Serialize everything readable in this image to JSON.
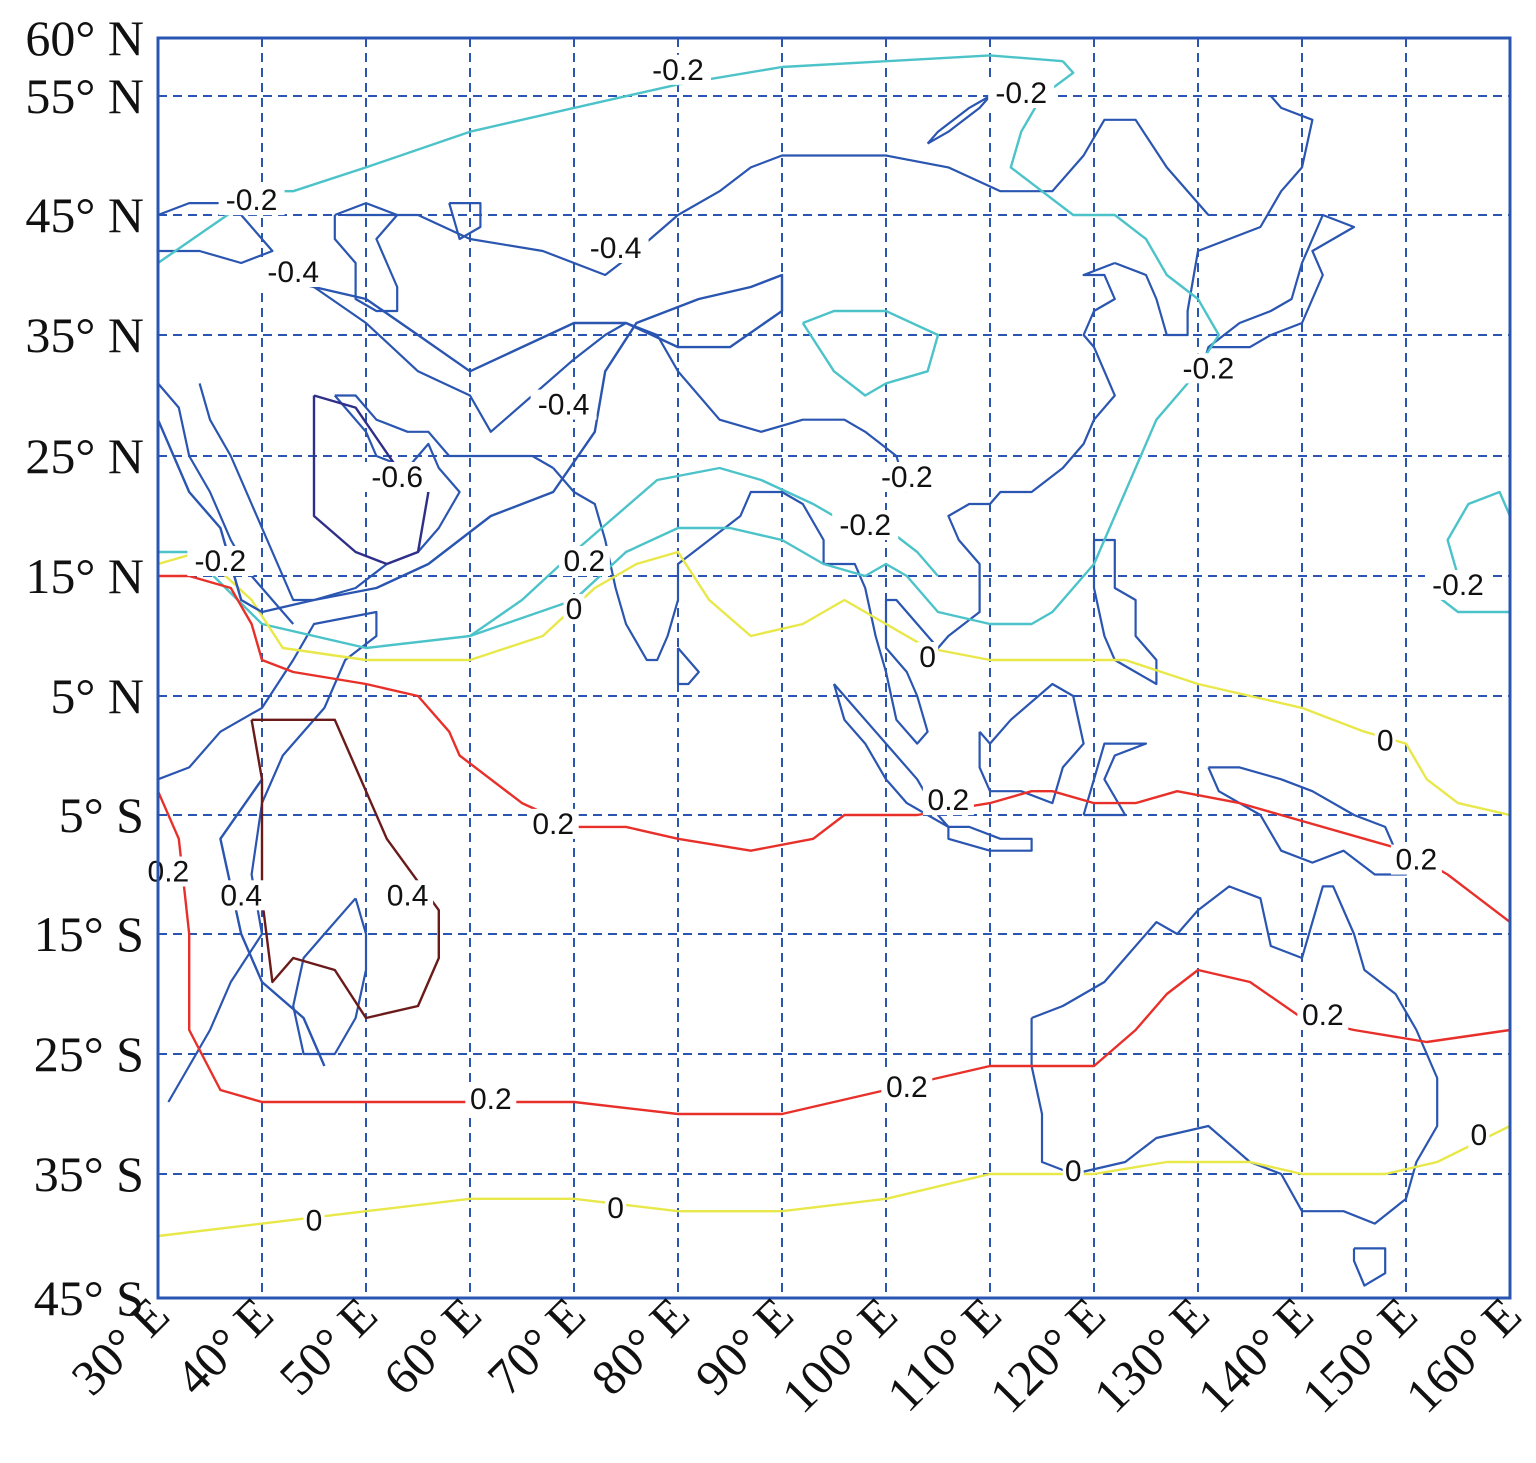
{
  "figure": {
    "lat_labels": [
      "60° N",
      "55° N",
      "45° N",
      "35° N",
      "25° N",
      "15° N",
      "5° N",
      "5° S",
      "15° S",
      "25° S",
      "35° S",
      "45° S"
    ],
    "lon_labels": [
      "30° E",
      "40° E",
      "50° E",
      "60° E",
      "70° E",
      "80° E",
      "90° E",
      "100° E",
      "110° E",
      "120° E",
      "130° E",
      "140° E",
      "150° E",
      "160° E"
    ],
    "colors": {
      "frame": "#2a55b0",
      "grid": "#2a55b0",
      "coastline": "#2a55b0",
      "contour_-0.6": "#2f2f8a",
      "contour_-0.4": "#2a55b0",
      "contour_-0.2": "#4cc3c9",
      "contour_0": "#e8e84a",
      "contour_0.2": "#e8302a",
      "contour_0.4": "#6b1a1a"
    }
  },
  "chart_data": {
    "type": "contour_map",
    "xlabel": "",
    "ylabel": "",
    "xlim": [
      30,
      160
    ],
    "ylim": [
      -45,
      60
    ],
    "x_ticks": [
      30,
      40,
      50,
      60,
      70,
      80,
      90,
      100,
      110,
      120,
      130,
      140,
      150,
      160
    ],
    "y_ticks": [
      60,
      55,
      45,
      35,
      25,
      15,
      5,
      -5,
      -15,
      -25,
      -35,
      -45
    ],
    "grid": true,
    "grid_style": "dashed",
    "contour_levels": [
      -0.6,
      -0.4,
      -0.2,
      0,
      0.2,
      0.4
    ],
    "contours": [
      {
        "level": -0.2,
        "color": "#4cc3c9",
        "points": [
          [
            30,
            17
          ],
          [
            33,
            17
          ],
          [
            40,
            11
          ],
          [
            50,
            9
          ],
          [
            60,
            10
          ],
          [
            70,
            13
          ],
          [
            75,
            17
          ],
          [
            80,
            19
          ],
          [
            85,
            19
          ],
          [
            90,
            18
          ],
          [
            94,
            16
          ],
          [
            98,
            15
          ],
          [
            100,
            16
          ],
          [
            102,
            15
          ],
          [
            105,
            12
          ],
          [
            110,
            11
          ],
          [
            114,
            11
          ],
          [
            116,
            12
          ],
          [
            120,
            16
          ],
          [
            123,
            22
          ],
          [
            126,
            28
          ],
          [
            129,
            31
          ],
          [
            132,
            35
          ],
          [
            130,
            38
          ],
          [
            127,
            40
          ],
          [
            125,
            43
          ],
          [
            122,
            45
          ],
          [
            118,
            45
          ],
          [
            115,
            47
          ],
          [
            112,
            49
          ],
          [
            113,
            52
          ],
          [
            115,
            55
          ],
          [
            118,
            57
          ],
          [
            117,
            58
          ]
        ]
      },
      {
        "level": -0.2,
        "color": "#4cc3c9",
        "points": [
          [
            117,
            58
          ],
          [
            110,
            58.5
          ],
          [
            100,
            58
          ],
          [
            90,
            57.5
          ],
          [
            80,
            56
          ],
          [
            70,
            54
          ],
          [
            60,
            52
          ],
          [
            50,
            49
          ],
          [
            43,
            47
          ],
          [
            40,
            47
          ],
          [
            35,
            44
          ],
          [
            30,
            41
          ]
        ]
      },
      {
        "level": -0.2,
        "color": "#4cc3c9",
        "points": [
          [
            60,
            10
          ],
          [
            65,
            13
          ],
          [
            70,
            17
          ],
          [
            78,
            23
          ],
          [
            84,
            24
          ],
          [
            88,
            23
          ],
          [
            93,
            21
          ],
          [
            97,
            19
          ],
          [
            100,
            19
          ],
          [
            103,
            17
          ],
          [
            105,
            15
          ]
        ]
      },
      {
        "level": -0.2,
        "color": "#4cc3c9",
        "points": [
          [
            92,
            36
          ],
          [
            95,
            37
          ],
          [
            100,
            37
          ],
          [
            105,
            35
          ],
          [
            104,
            32
          ],
          [
            100,
            31
          ],
          [
            98,
            30
          ],
          [
            95,
            32
          ],
          [
            92,
            36
          ]
        ]
      },
      {
        "level": -0.2,
        "color": "#4cc3c9",
        "points": [
          [
            155,
            15
          ],
          [
            154,
            18
          ],
          [
            156,
            21
          ],
          [
            159,
            22
          ],
          [
            160,
            20
          ]
        ]
      },
      {
        "level": -0.2,
        "color": "#4cc3c9",
        "points": [
          [
            155,
            15
          ],
          [
            152,
            14
          ],
          [
            155,
            12
          ],
          [
            160,
            12
          ]
        ]
      },
      {
        "level": 0,
        "color": "#e8e84a",
        "points": [
          [
            30,
            16
          ],
          [
            34,
            17
          ],
          [
            39,
            13
          ],
          [
            42,
            9
          ],
          [
            50,
            8
          ],
          [
            60,
            8
          ],
          [
            67,
            10
          ],
          [
            72,
            14
          ],
          [
            76,
            16
          ],
          [
            80,
            17
          ],
          [
            83,
            13
          ],
          [
            87,
            10
          ],
          [
            92,
            11
          ],
          [
            96,
            13
          ],
          [
            100,
            11
          ],
          [
            104,
            9
          ],
          [
            110,
            8
          ],
          [
            118,
            8
          ],
          [
            123,
            8
          ],
          [
            130,
            6
          ],
          [
            135,
            5
          ],
          [
            140,
            4
          ],
          [
            146,
            2
          ],
          [
            150,
            1
          ],
          [
            152,
            -2
          ],
          [
            155,
            -4
          ],
          [
            160,
            -5
          ]
        ]
      },
      {
        "level": 0,
        "color": "#e8e84a",
        "points": [
          [
            30,
            -40
          ],
          [
            40,
            -39
          ],
          [
            50,
            -38
          ],
          [
            60,
            -37
          ],
          [
            70,
            -37
          ],
          [
            80,
            -38
          ],
          [
            90,
            -38
          ],
          [
            100,
            -37
          ],
          [
            110,
            -35
          ],
          [
            120,
            -35
          ],
          [
            127,
            -34
          ],
          [
            135,
            -34
          ],
          [
            140,
            -35
          ],
          [
            148,
            -35
          ],
          [
            153,
            -34
          ],
          [
            160,
            -31
          ]
        ]
      },
      {
        "level": 0.2,
        "color": "#e8302a",
        "points": [
          [
            30,
            15
          ],
          [
            33,
            15
          ],
          [
            37,
            14
          ],
          [
            39,
            11
          ],
          [
            40,
            8
          ],
          [
            43,
            7
          ],
          [
            50,
            6
          ],
          [
            55,
            5
          ],
          [
            58,
            2
          ],
          [
            59,
            0
          ],
          [
            62,
            -2
          ],
          [
            65,
            -4
          ],
          [
            70,
            -6
          ],
          [
            75,
            -6
          ],
          [
            80,
            -7
          ],
          [
            87,
            -8
          ],
          [
            93,
            -7
          ],
          [
            96,
            -5
          ],
          [
            103,
            -5
          ],
          [
            110,
            -4
          ],
          [
            114,
            -3
          ],
          [
            116,
            -3
          ],
          [
            120,
            -4
          ],
          [
            124,
            -4
          ],
          [
            128,
            -3
          ],
          [
            134,
            -4
          ],
          [
            140,
            -5.5
          ],
          [
            146,
            -7
          ],
          [
            150,
            -8
          ],
          [
            154,
            -10
          ],
          [
            160,
            -14
          ]
        ]
      },
      {
        "level": 0.2,
        "color": "#e8302a",
        "points": [
          [
            30,
            -3
          ],
          [
            32,
            -7
          ],
          [
            33,
            -15
          ],
          [
            33,
            -23
          ],
          [
            36,
            -28
          ],
          [
            40,
            -29
          ],
          [
            50,
            -29
          ],
          [
            60,
            -29
          ],
          [
            70,
            -29
          ],
          [
            80,
            -30
          ],
          [
            90,
            -30
          ],
          [
            100,
            -28
          ],
          [
            110,
            -26
          ],
          [
            120,
            -26
          ],
          [
            124,
            -23
          ],
          [
            127,
            -20
          ],
          [
            130,
            -18
          ],
          [
            135,
            -19
          ],
          [
            140,
            -22
          ],
          [
            145,
            -23
          ],
          [
            152,
            -24
          ],
          [
            160,
            -23
          ]
        ]
      },
      {
        "level": -0.4,
        "color": "#2a55b0",
        "points": [
          [
            30,
            28
          ],
          [
            33,
            22
          ],
          [
            36,
            19
          ],
          [
            38,
            13
          ],
          [
            40,
            12
          ],
          [
            45,
            13
          ],
          [
            51,
            14
          ],
          [
            56,
            16
          ],
          [
            62,
            20
          ],
          [
            68,
            22
          ],
          [
            72,
            27
          ],
          [
            73,
            32
          ],
          [
            76,
            36
          ],
          [
            82,
            38
          ],
          [
            87,
            39
          ],
          [
            90,
            40
          ],
          [
            90,
            37
          ],
          [
            85,
            34
          ],
          [
            80,
            34
          ],
          [
            75,
            36
          ],
          [
            70,
            36
          ],
          [
            65,
            34
          ],
          [
            60,
            32
          ],
          [
            55,
            35
          ],
          [
            50,
            38
          ],
          [
            45,
            39
          ],
          [
            40,
            40
          ]
        ]
      },
      {
        "level": -0.4,
        "color": "#2a55b0",
        "points": [
          [
            40,
            -2
          ],
          [
            36,
            -7
          ],
          [
            38,
            -15
          ],
          [
            40,
            -19
          ],
          [
            44,
            -22
          ],
          [
            46,
            -26
          ]
        ]
      },
      {
        "level": 0.4,
        "color": "#6b1a1a",
        "points": [
          [
            39,
            3
          ],
          [
            47,
            3
          ],
          [
            50,
            -3
          ],
          [
            52,
            -7
          ],
          [
            57,
            -13
          ],
          [
            57,
            -17
          ],
          [
            55,
            -21
          ],
          [
            50,
            -22
          ],
          [
            47,
            -18
          ],
          [
            43,
            -17
          ],
          [
            41,
            -19
          ],
          [
            40,
            -12
          ],
          [
            40,
            -2
          ],
          [
            39,
            3
          ]
        ]
      },
      {
        "level": -0.6,
        "color": "#2f2f8a",
        "points": [
          [
            45,
            30
          ],
          [
            49,
            29
          ],
          [
            53,
            24
          ],
          [
            56,
            22
          ],
          [
            55,
            17
          ],
          [
            52,
            16
          ],
          [
            49,
            17
          ],
          [
            45,
            20
          ],
          [
            45,
            25
          ],
          [
            45,
            30
          ]
        ]
      }
    ],
    "contour_labels": [
      {
        "text": "-0.2",
        "lon": 80,
        "lat": 57
      },
      {
        "text": "-0.2",
        "lon": 113,
        "lat": 55
      },
      {
        "text": "-0.2",
        "lon": 39,
        "lat": 46
      },
      {
        "text": "-0.4",
        "lon": 43,
        "lat": 40
      },
      {
        "text": "-0.4",
        "lon": 74,
        "lat": 42
      },
      {
        "text": "-0.4",
        "lon": 69,
        "lat": 29
      },
      {
        "text": "-0.6",
        "lon": 53,
        "lat": 23
      },
      {
        "text": "-0.2",
        "lon": 102,
        "lat": 23
      },
      {
        "text": "-0.2",
        "lon": 98,
        "lat": 19
      },
      {
        "text": "-0.2",
        "lon": 131,
        "lat": 32
      },
      {
        "text": "-0.2",
        "lon": 155,
        "lat": 14
      },
      {
        "text": "-0.2",
        "lon": 36,
        "lat": 16
      },
      {
        "text": "0.2",
        "lon": 71,
        "lat": 16
      },
      {
        "text": "0",
        "lon": 70,
        "lat": 12
      },
      {
        "text": "0",
        "lon": 104,
        "lat": 8
      },
      {
        "text": "0",
        "lon": 148,
        "lat": 1
      },
      {
        "text": "0.2",
        "lon": 68,
        "lat": -6
      },
      {
        "text": "0.2",
        "lon": 106,
        "lat": -4
      },
      {
        "text": "0.2",
        "lon": 151,
        "lat": -9
      },
      {
        "text": "0.2",
        "lon": 62,
        "lat": -29
      },
      {
        "text": "0.2",
        "lon": 102,
        "lat": -28
      },
      {
        "text": "0.2",
        "lon": 142,
        "lat": -22
      },
      {
        "text": "0",
        "lon": 45,
        "lat": -39
      },
      {
        "text": "0",
        "lon": 74,
        "lat": -38
      },
      {
        "text": "0",
        "lon": 118,
        "lat": -35
      },
      {
        "text": "0",
        "lon": 157,
        "lat": -32
      },
      {
        "text": "0.4",
        "lon": 54,
        "lat": -12
      },
      {
        "text": "0.4",
        "lon": 38,
        "lat": -12
      },
      {
        "text": "0.2",
        "lon": 31,
        "lat": -10
      }
    ]
  }
}
